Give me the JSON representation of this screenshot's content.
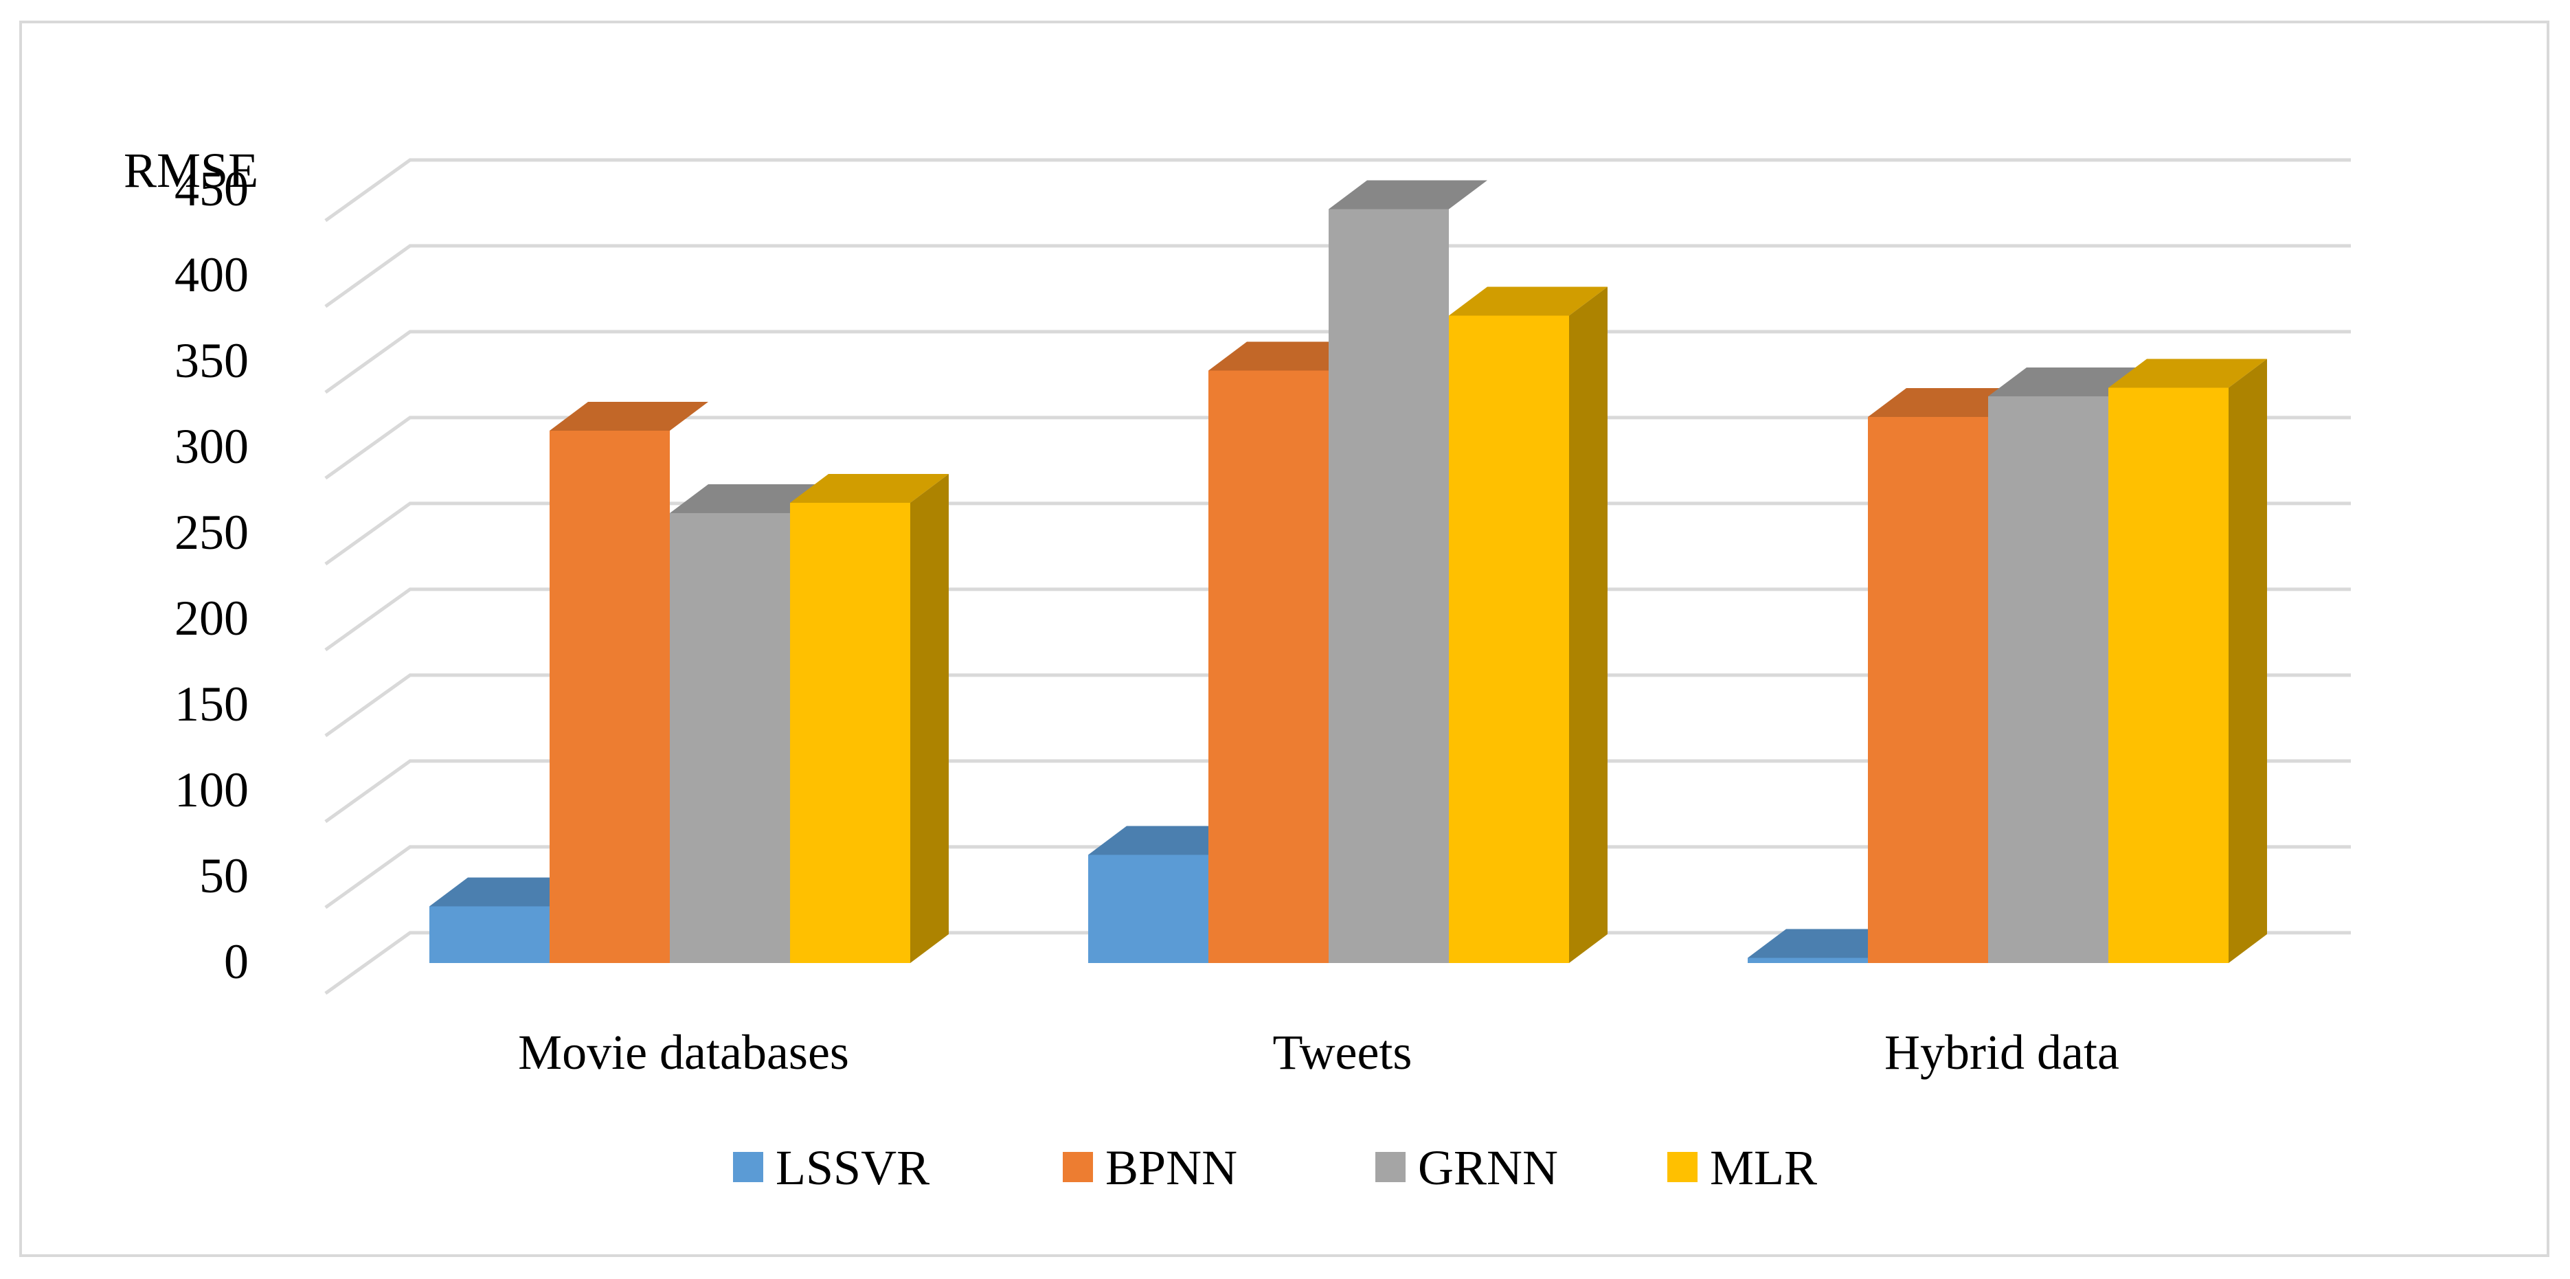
{
  "chart_data": {
    "type": "bar",
    "ylabel": "RMSE",
    "xlabel": "",
    "title": "",
    "ylim": [
      0,
      450
    ],
    "ytick_step": 50,
    "ytick_labels": [
      "0",
      "50",
      "100",
      "150",
      "200",
      "250",
      "300",
      "350",
      "400",
      "450"
    ],
    "grid": true,
    "style": "3d-clustered-column",
    "legend_position": "bottom",
    "categories": [
      "Movie databases",
      "Tweets",
      "Hybrid data"
    ],
    "series": [
      {
        "name": "LSSVR",
        "color": "#5b9bd5",
        "values": [
          33,
          63,
          3
        ]
      },
      {
        "name": "BPNN",
        "color": "#ed7d31",
        "values": [
          310,
          345,
          318
        ]
      },
      {
        "name": "GRNN",
        "color": "#a5a5a5",
        "values": [
          262,
          439,
          330
        ]
      },
      {
        "name": "MLR",
        "color": "#ffc000",
        "values": [
          268,
          377,
          335
        ]
      }
    ]
  }
}
